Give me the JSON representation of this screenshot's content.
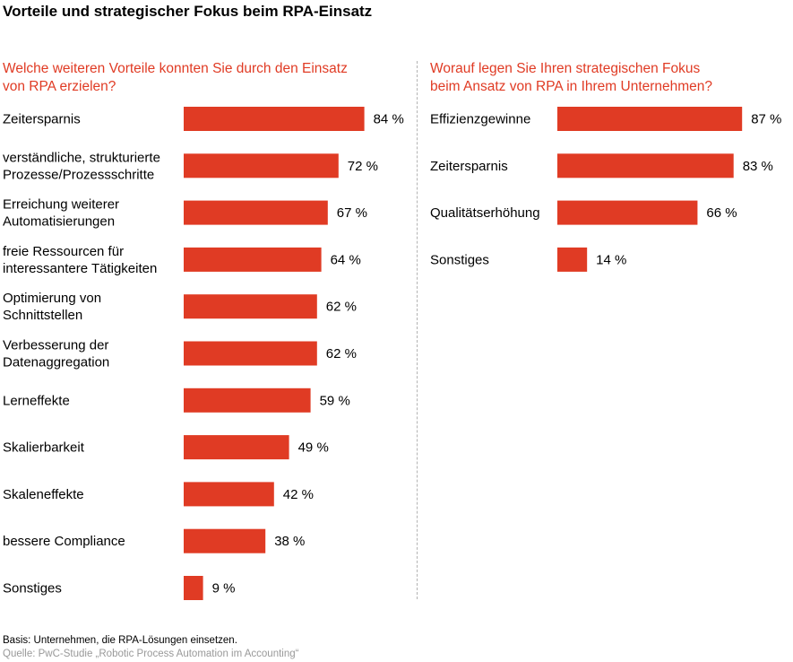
{
  "title": "Vorteile und strategischer Fokus beim RPA-Einsatz",
  "bar_color": "#e03b24",
  "accent_color": "#e03b24",
  "chart_data": [
    {
      "type": "bar",
      "orientation": "horizontal",
      "title": "Welche weiteren Vorteile konnten Sie durch den Einsatz von RPA erzielen?",
      "categories": [
        [
          "Zeitersparnis"
        ],
        [
          "verständliche, strukturierte",
          "Prozesse/Prozessschritte"
        ],
        [
          "Erreichung weiterer",
          "Automatisierungen"
        ],
        [
          "freie Ressourcen für",
          "interessantere Tätigkeiten"
        ],
        [
          "Optimierung von",
          "Schnittstellen"
        ],
        [
          "Verbesserung der",
          "Datenaggregation"
        ],
        [
          "Lerneffekte"
        ],
        [
          "Skalierbarkeit"
        ],
        [
          "Skaleneffekte"
        ],
        [
          "bessere Compliance"
        ],
        [
          "Sonstiges"
        ]
      ],
      "values": [
        84,
        72,
        67,
        64,
        62,
        62,
        59,
        49,
        42,
        38,
        9
      ],
      "value_labels": [
        "84 %",
        "72 %",
        "67 %",
        "64 %",
        "62 %",
        "62 %",
        "59 %",
        "49 %",
        "42 %",
        "38 %",
        "9 %"
      ],
      "unit": "%",
      "xlim": [
        0,
        100
      ]
    },
    {
      "type": "bar",
      "orientation": "horizontal",
      "title": "Worauf legen Sie Ihren strategischen Fokus beim Ansatz von RPA in Ihrem Unternehmen?",
      "categories": [
        [
          "Effizienzgewinne"
        ],
        [
          "Zeitersparnis"
        ],
        [
          "Qualitätserhöhung"
        ],
        [
          "Sonstiges"
        ]
      ],
      "values": [
        87,
        83,
        66,
        14
      ],
      "value_labels": [
        "87 %",
        "83 %",
        "66 %",
        "14 %"
      ],
      "unit": "%",
      "xlim": [
        0,
        100
      ]
    }
  ],
  "questions": {
    "left": [
      "Welche weiteren Vorteile konnten Sie durch den Einsatz",
      "von RPA erzielen?"
    ],
    "right": [
      "Worauf legen Sie Ihren strategischen Fokus",
      "beim Ansatz von RPA in Ihrem Unternehmen?"
    ]
  },
  "footer": {
    "basis": "Basis: Unternehmen, die RPA-Lösungen einsetzen.",
    "quelle": "Quelle: PwC-Studie „Robotic Process Automation im Accounting“"
  }
}
